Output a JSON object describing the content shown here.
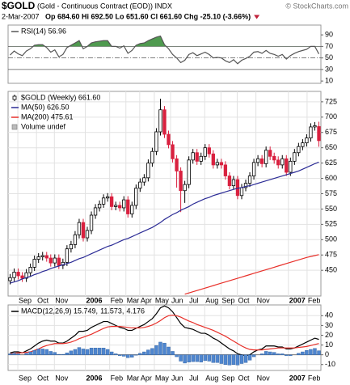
{
  "header": {
    "symbol": "$GOLD",
    "name": "(Gold - Continuous Contract (EOD)) INDX",
    "credit": "© StockCharts.com",
    "date": "2-Mar-2007",
    "quote": "Op 684.60 Hi 692.50 Lo 651.60 Cl 661.60 Chg -25.10 (-3.66%)"
  },
  "chart_data": [
    {
      "type": "line",
      "series": [
        {
          "name": "RSI(14) 56.96",
          "color": "#555555",
          "values": [
            55,
            62,
            57,
            54,
            62,
            66,
            72,
            73,
            73,
            68,
            60,
            64,
            52,
            56,
            68,
            72,
            76,
            80,
            66,
            70,
            76,
            78,
            79,
            80,
            80,
            70,
            70,
            67,
            71,
            58,
            63,
            72,
            75,
            76,
            80,
            83,
            86,
            88,
            73,
            66,
            56,
            50,
            42,
            46,
            56,
            59,
            54,
            57,
            60,
            56,
            50,
            51,
            50,
            45,
            42,
            47,
            40,
            46,
            49,
            53,
            60,
            61,
            58,
            63,
            58,
            56,
            53,
            56,
            48,
            54,
            58,
            61,
            63,
            65,
            70,
            70,
            56.96
          ]
        }
      ],
      "fill_above": 70,
      "fill_color": "#4f9a4f",
      "hlines": [
        {
          "value": 70,
          "style": "solid"
        },
        {
          "value": 50,
          "style": "dashdot"
        },
        {
          "value": 30,
          "style": "solid"
        }
      ],
      "xlim": [
        -0.5,
        76.5
      ],
      "ylim": [
        6,
        107
      ],
      "yticks": [
        90,
        70,
        50,
        30,
        10
      ],
      "grid": false
    },
    {
      "type": "candlestick",
      "name": "$GOLD (Weekly) 661.60",
      "up_color": "#000000",
      "down_color": "#d9203f",
      "open": [
        433,
        438,
        447,
        441,
        437,
        446,
        455,
        468,
        472,
        474,
        470,
        462,
        470,
        458,
        463,
        485,
        492,
        508,
        528,
        503,
        515,
        540,
        552,
        558,
        568,
        570,
        554,
        556,
        552,
        565,
        542,
        556,
        584,
        594,
        601,
        625,
        644,
        676,
        712,
        672,
        655,
        632,
        612,
        580,
        590,
        630,
        642,
        628,
        636,
        650,
        640,
        622,
        626,
        622,
        604,
        588,
        598,
        572,
        585,
        592,
        604,
        626,
        632,
        624,
        646,
        636,
        630,
        622,
        632,
        610,
        628,
        642,
        652,
        658,
        666,
        684,
        684.6
      ],
      "high": [
        444,
        453,
        453,
        447,
        452,
        461,
        474,
        478,
        480,
        480,
        476,
        476,
        476,
        469,
        491,
        498,
        514,
        534,
        534,
        521,
        546,
        558,
        564,
        574,
        576,
        576,
        562,
        562,
        571,
        571,
        562,
        590,
        600,
        607,
        631,
        650,
        682,
        730,
        718,
        678,
        661,
        638,
        618,
        596,
        636,
        648,
        648,
        642,
        656,
        656,
        646,
        632,
        632,
        628,
        610,
        604,
        604,
        591,
        598,
        610,
        632,
        638,
        638,
        652,
        652,
        642,
        636,
        638,
        638,
        634,
        648,
        658,
        664,
        672,
        690,
        692,
        692.5
      ],
      "low": [
        427,
        432,
        435,
        431,
        431,
        440,
        449,
        462,
        466,
        464,
        456,
        456,
        452,
        452,
        457,
        479,
        486,
        502,
        497,
        497,
        509,
        534,
        546,
        552,
        562,
        548,
        548,
        546,
        546,
        536,
        536,
        550,
        578,
        588,
        595,
        619,
        638,
        670,
        666,
        649,
        626,
        585,
        545,
        560,
        584,
        624,
        622,
        622,
        630,
        634,
        616,
        616,
        616,
        598,
        582,
        582,
        566,
        566,
        579,
        586,
        598,
        620,
        618,
        618,
        630,
        624,
        616,
        616,
        604,
        604,
        622,
        636,
        646,
        652,
        660,
        678,
        651.6
      ],
      "close": [
        438,
        447,
        441,
        437,
        446,
        455,
        468,
        472,
        474,
        470,
        462,
        470,
        458,
        463,
        485,
        492,
        508,
        528,
        503,
        515,
        540,
        552,
        558,
        568,
        570,
        554,
        556,
        552,
        565,
        542,
        556,
        584,
        594,
        601,
        625,
        644,
        676,
        712,
        672,
        655,
        632,
        612,
        580,
        590,
        630,
        642,
        628,
        636,
        650,
        640,
        622,
        626,
        622,
        604,
        588,
        598,
        572,
        585,
        592,
        604,
        626,
        632,
        624,
        646,
        636,
        630,
        622,
        632,
        610,
        628,
        642,
        652,
        658,
        666,
        684,
        686,
        661.6
      ],
      "series": [
        {
          "name": "MA(50) 626.50",
          "color": "#2c2c96",
          "values": [
            429,
            431,
            433,
            436,
            438,
            440,
            443,
            445,
            448,
            450,
            453,
            455,
            457,
            459,
            461,
            463,
            466,
            469,
            471,
            474,
            477,
            480,
            483,
            486,
            489,
            491,
            494,
            497,
            500,
            502,
            505,
            508,
            511,
            514,
            517,
            520,
            524,
            528,
            533,
            537,
            541,
            544,
            548,
            551,
            554,
            558,
            561,
            564,
            567,
            569,
            572,
            574,
            576,
            578,
            580,
            582,
            584,
            585,
            587,
            588,
            590,
            592,
            594,
            596,
            598,
            600,
            602,
            604,
            606,
            608,
            610,
            612,
            615,
            618,
            621,
            624,
            626.5
          ]
        },
        {
          "name": "MA(200) 475.61",
          "color": "#e8302a",
          "values": [
            null,
            null,
            null,
            null,
            null,
            null,
            null,
            null,
            null,
            null,
            null,
            null,
            null,
            null,
            null,
            null,
            null,
            null,
            null,
            null,
            null,
            null,
            null,
            null,
            null,
            null,
            null,
            null,
            null,
            null,
            null,
            null,
            null,
            null,
            null,
            null,
            null,
            null,
            null,
            null,
            null,
            null,
            null,
            411,
            413,
            415,
            417,
            419,
            421,
            423,
            425,
            427,
            429,
            431,
            433,
            435,
            437,
            439,
            441,
            443,
            445,
            447,
            449,
            451,
            453,
            455,
            457,
            459,
            461,
            463,
            465,
            467,
            469,
            471,
            472.5,
            474,
            475.61
          ]
        }
      ],
      "volume_label": "Volume undef",
      "xlim": [
        -0.5,
        76.5
      ],
      "ylim": [
        408,
        742
      ],
      "yticks": [
        450,
        475,
        500,
        525,
        550,
        575,
        600,
        625,
        650,
        675,
        700,
        725
      ],
      "grid": true,
      "xticks": [
        {
          "value": 1.9,
          "label": "Sep"
        },
        {
          "value": 6.5,
          "label": "Oct"
        },
        {
          "value": 10.9,
          "label": "Nov"
        },
        {
          "value": 18.5,
          "label": "2006"
        },
        {
          "value": 24.5,
          "label": "Feb"
        },
        {
          "value": 28.5,
          "label": "Mar"
        },
        {
          "value": 31.9,
          "label": "Apr"
        },
        {
          "value": 35.5,
          "label": "May"
        },
        {
          "value": 39.5,
          "label": "Jun"
        },
        {
          "value": 43.9,
          "label": "Jul"
        },
        {
          "value": 47.9,
          "label": "Aug"
        },
        {
          "value": 51.9,
          "label": "Sep"
        },
        {
          "value": 55.9,
          "label": "Oct"
        },
        {
          "value": 60.5,
          "label": "Nov"
        },
        {
          "value": 68.5,
          "label": "2007"
        },
        {
          "value": 73.1,
          "label": "Feb"
        }
      ]
    },
    {
      "type": "line",
      "series": [
        {
          "name": "MACD(12,26,9) 15.749,",
          "color": "#000000",
          "values": [
            2,
            3,
            3,
            2,
            4,
            6,
            9,
            12,
            14,
            15,
            14,
            14,
            12,
            12,
            14,
            17,
            20,
            24,
            24,
            25,
            28,
            30,
            32,
            34,
            34,
            32,
            30,
            28,
            27,
            25,
            25,
            27,
            29,
            31,
            34,
            37,
            42,
            48,
            50,
            48,
            44,
            38,
            32,
            28,
            27,
            26,
            24,
            22,
            22,
            20,
            17,
            15,
            12,
            9,
            6,
            4,
            1,
            0,
            -1,
            0,
            3,
            5,
            6,
            9,
            9,
            9,
            8,
            8,
            6,
            6,
            7,
            9,
            11,
            13,
            15,
            17,
            15.749
          ]
        },
        {
          "name": "11.573,",
          "color": "#e8302a",
          "values": [
            1,
            1.5,
            2,
            2,
            2.5,
            3,
            4.5,
            6,
            8,
            9.5,
            10.5,
            11.5,
            11.5,
            11.5,
            12,
            13,
            14.5,
            16.5,
            18,
            19.5,
            21,
            23,
            25,
            27,
            28.5,
            29,
            29,
            29,
            28.5,
            28,
            27.5,
            27.5,
            27.5,
            28,
            29,
            30.5,
            32.5,
            35,
            38,
            40,
            40.5,
            40,
            38.5,
            36.5,
            34.5,
            33,
            31,
            29.5,
            28,
            26.5,
            25,
            23,
            21,
            19,
            16.5,
            14,
            11.5,
            9,
            7,
            5.5,
            5,
            5,
            5,
            5.5,
            6,
            6.5,
            7,
            7,
            7,
            7,
            7,
            7.5,
            8,
            8.5,
            9.5,
            10.5,
            11.573
          ]
        },
        {
          "name": "4.176",
          "color": "#4f86cf",
          "kind": "bar",
          "values": [
            1,
            1.5,
            1,
            0,
            1.5,
            3,
            4.5,
            6,
            6,
            5.5,
            3.5,
            2.5,
            0.5,
            0.5,
            2,
            4,
            5.5,
            7.5,
            6,
            5.5,
            7,
            7,
            7,
            7,
            5.5,
            3,
            1,
            -1,
            -1.5,
            -3,
            -2.5,
            -0.5,
            1.5,
            3,
            5,
            6.5,
            9.5,
            13,
            12,
            8,
            3.5,
            -2,
            -6.5,
            -8.5,
            -7.5,
            -7,
            -7,
            -7.5,
            -6,
            -6.5,
            -8,
            -8,
            -9,
            -10,
            -10.5,
            -10,
            -10.5,
            -9,
            -8,
            -5.5,
            -2,
            0,
            1,
            3.5,
            3,
            2.5,
            1,
            1,
            -1,
            -1,
            0,
            1.5,
            3,
            4.5,
            5.5,
            6.5,
            4.176
          ]
        }
      ],
      "xlim": [
        -0.5,
        76.5
      ],
      "ylim": [
        -16,
        51
      ],
      "yticks": [
        40,
        30,
        20,
        10,
        0,
        -10
      ],
      "grid": true,
      "xticks": [
        {
          "value": 1.9,
          "label": "Sep"
        },
        {
          "value": 6.5,
          "label": "Oct"
        },
        {
          "value": 10.9,
          "label": "Nov"
        },
        {
          "value": 18.5,
          "label": "2006"
        },
        {
          "value": 24.5,
          "label": "Feb"
        },
        {
          "value": 28.5,
          "label": "Mar"
        },
        {
          "value": 31.9,
          "label": "Apr"
        },
        {
          "value": 35.5,
          "label": "May"
        },
        {
          "value": 39.5,
          "label": "Jun"
        },
        {
          "value": 43.9,
          "label": "Jul"
        },
        {
          "value": 47.9,
          "label": "Aug"
        },
        {
          "value": 51.9,
          "label": "Sep"
        },
        {
          "value": 55.9,
          "label": "Oct"
        },
        {
          "value": 60.5,
          "label": "Nov"
        },
        {
          "value": 68.5,
          "label": "2007"
        },
        {
          "value": 73.1,
          "label": "Feb"
        }
      ]
    }
  ]
}
